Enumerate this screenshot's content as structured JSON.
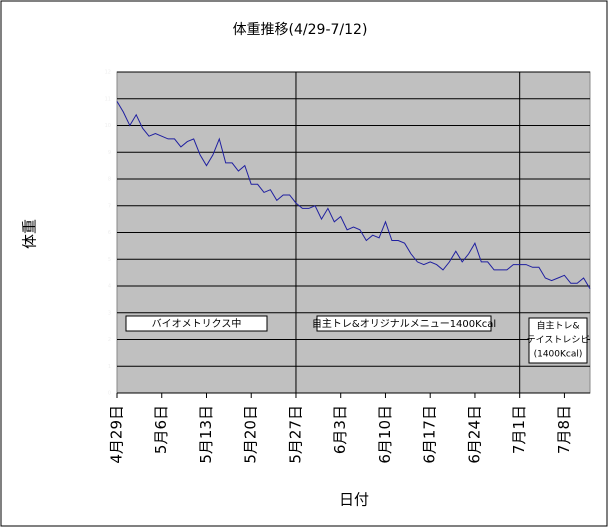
{
  "chart_data": {
    "type": "line",
    "title": "体重推移(4/29-7/12)",
    "x_label": "日付",
    "y_label": "体重",
    "categories": [
      "4月29日",
      null,
      null,
      null,
      null,
      null,
      null,
      "5月6日",
      null,
      null,
      null,
      null,
      null,
      null,
      "5月13日",
      null,
      null,
      null,
      null,
      null,
      null,
      "5月20日",
      null,
      null,
      null,
      null,
      null,
      null,
      "5月27日",
      null,
      null,
      null,
      null,
      null,
      null,
      "6月3日",
      null,
      null,
      null,
      null,
      null,
      null,
      "6月10日",
      null,
      null,
      null,
      null,
      null,
      null,
      "6月17日",
      null,
      null,
      null,
      null,
      null,
      null,
      "6月24日",
      null,
      null,
      null,
      null,
      null,
      null,
      "7月1日",
      null,
      null,
      null,
      null,
      null,
      null,
      "7月8日",
      null,
      null,
      null,
      null
    ],
    "values": [
      10.9,
      10.5,
      10.0,
      10.4,
      9.9,
      9.6,
      9.7,
      9.6,
      9.5,
      9.5,
      9.2,
      9.4,
      9.5,
      8.9,
      8.5,
      8.9,
      9.5,
      8.6,
      8.6,
      8.3,
      8.5,
      7.8,
      7.8,
      7.5,
      7.6,
      7.2,
      7.4,
      7.4,
      7.1,
      6.9,
      6.9,
      7.0,
      6.5,
      6.9,
      6.4,
      6.6,
      6.1,
      6.2,
      6.1,
      5.7,
      5.9,
      5.8,
      6.4,
      5.7,
      5.7,
      5.6,
      5.2,
      4.9,
      4.8,
      4.9,
      4.8,
      4.6,
      4.9,
      5.3,
      4.9,
      5.2,
      5.6,
      4.9,
      4.9,
      4.6,
      4.6,
      4.6,
      4.8,
      4.8,
      4.8,
      4.7,
      4.7,
      4.3,
      4.2,
      4.3,
      4.4,
      4.1,
      4.1,
      4.3,
      3.9
    ],
    "color": "#1f1fa0",
    "ylim": [
      0,
      12
    ],
    "yticks": [
      0,
      1,
      2,
      3,
      4,
      5,
      6,
      7,
      8,
      9,
      10,
      11,
      12
    ],
    "grid": true,
    "dividers": [
      28,
      63
    ],
    "annotations": [
      {
        "lines": [
          "バイオメトリクス中"
        ]
      },
      {
        "lines": [
          "自主トレ&オリジナルメニュー1400Kcal"
        ]
      },
      {
        "lines": [
          "自主トレ&",
          "テイストレシピ",
          "(1400Kcal)"
        ]
      }
    ]
  }
}
